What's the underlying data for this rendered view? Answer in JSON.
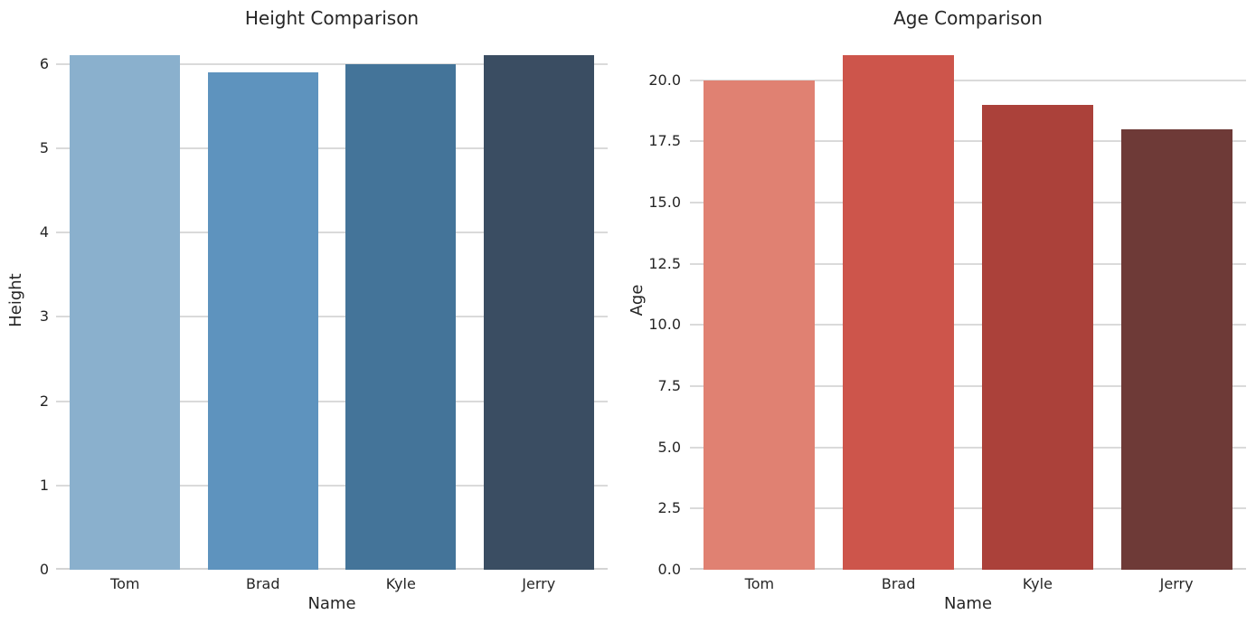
{
  "figure": {
    "background": "#ffffff",
    "text_color": "#262626",
    "grid_color": "#dadada"
  },
  "chart_data": [
    {
      "type": "bar",
      "title": "Height Comparison",
      "xlabel": "Name",
      "ylabel": "Height",
      "categories": [
        "Tom",
        "Brad",
        "Kyle",
        "Jerry"
      ],
      "values": [
        6.1,
        5.9,
        6.0,
        6.1
      ],
      "ylim": [
        0,
        6.405
      ],
      "yticks": [
        0,
        1,
        2,
        3,
        4,
        5,
        6
      ],
      "ytick_labels": [
        "0",
        "1",
        "2",
        "3",
        "4",
        "5",
        "6"
      ],
      "grid": true,
      "legend": null,
      "bar_colors": [
        "#8ab0cd",
        "#5e93be",
        "#447499",
        "#3a4d62"
      ]
    },
    {
      "type": "bar",
      "title": "Age Comparison",
      "xlabel": "Name",
      "ylabel": "Age",
      "categories": [
        "Tom",
        "Brad",
        "Kyle",
        "Jerry"
      ],
      "values": [
        20,
        21,
        19,
        18
      ],
      "ylim": [
        0,
        22.05
      ],
      "yticks": [
        0,
        2.5,
        5,
        7.5,
        10,
        12.5,
        15,
        17.5,
        20
      ],
      "ytick_labels": [
        "0.0",
        "2.5",
        "5.0",
        "7.5",
        "10.0",
        "12.5",
        "15.0",
        "17.5",
        "20.0"
      ],
      "grid": true,
      "legend": null,
      "bar_colors": [
        "#e08172",
        "#cd554b",
        "#ab413a",
        "#6e3a37"
      ]
    }
  ]
}
